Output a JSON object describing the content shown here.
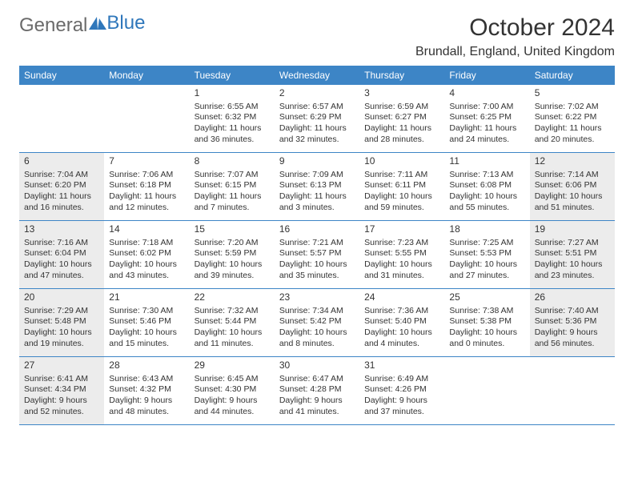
{
  "logo": {
    "text1": "General",
    "text2": "Blue"
  },
  "title": "October 2024",
  "location": "Brundall, England, United Kingdom",
  "colors": {
    "header_bg": "#3d85c6",
    "shade": "#ececec",
    "text": "#333333",
    "border": "#3d85c6"
  },
  "dayHeaders": [
    "Sunday",
    "Monday",
    "Tuesday",
    "Wednesday",
    "Thursday",
    "Friday",
    "Saturday"
  ],
  "weeks": [
    [
      {
        "day": "",
        "sunrise": "",
        "sunset": "",
        "daylight": "",
        "shade": false
      },
      {
        "day": "",
        "sunrise": "",
        "sunset": "",
        "daylight": "",
        "shade": false
      },
      {
        "day": "1",
        "sunrise": "Sunrise: 6:55 AM",
        "sunset": "Sunset: 6:32 PM",
        "daylight": "Daylight: 11 hours and 36 minutes.",
        "shade": false
      },
      {
        "day": "2",
        "sunrise": "Sunrise: 6:57 AM",
        "sunset": "Sunset: 6:29 PM",
        "daylight": "Daylight: 11 hours and 32 minutes.",
        "shade": false
      },
      {
        "day": "3",
        "sunrise": "Sunrise: 6:59 AM",
        "sunset": "Sunset: 6:27 PM",
        "daylight": "Daylight: 11 hours and 28 minutes.",
        "shade": false
      },
      {
        "day": "4",
        "sunrise": "Sunrise: 7:00 AM",
        "sunset": "Sunset: 6:25 PM",
        "daylight": "Daylight: 11 hours and 24 minutes.",
        "shade": false
      },
      {
        "day": "5",
        "sunrise": "Sunrise: 7:02 AM",
        "sunset": "Sunset: 6:22 PM",
        "daylight": "Daylight: 11 hours and 20 minutes.",
        "shade": false
      }
    ],
    [
      {
        "day": "6",
        "sunrise": "Sunrise: 7:04 AM",
        "sunset": "Sunset: 6:20 PM",
        "daylight": "Daylight: 11 hours and 16 minutes.",
        "shade": true
      },
      {
        "day": "7",
        "sunrise": "Sunrise: 7:06 AM",
        "sunset": "Sunset: 6:18 PM",
        "daylight": "Daylight: 11 hours and 12 minutes.",
        "shade": false
      },
      {
        "day": "8",
        "sunrise": "Sunrise: 7:07 AM",
        "sunset": "Sunset: 6:15 PM",
        "daylight": "Daylight: 11 hours and 7 minutes.",
        "shade": false
      },
      {
        "day": "9",
        "sunrise": "Sunrise: 7:09 AM",
        "sunset": "Sunset: 6:13 PM",
        "daylight": "Daylight: 11 hours and 3 minutes.",
        "shade": false
      },
      {
        "day": "10",
        "sunrise": "Sunrise: 7:11 AM",
        "sunset": "Sunset: 6:11 PM",
        "daylight": "Daylight: 10 hours and 59 minutes.",
        "shade": false
      },
      {
        "day": "11",
        "sunrise": "Sunrise: 7:13 AM",
        "sunset": "Sunset: 6:08 PM",
        "daylight": "Daylight: 10 hours and 55 minutes.",
        "shade": false
      },
      {
        "day": "12",
        "sunrise": "Sunrise: 7:14 AM",
        "sunset": "Sunset: 6:06 PM",
        "daylight": "Daylight: 10 hours and 51 minutes.",
        "shade": true
      }
    ],
    [
      {
        "day": "13",
        "sunrise": "Sunrise: 7:16 AM",
        "sunset": "Sunset: 6:04 PM",
        "daylight": "Daylight: 10 hours and 47 minutes.",
        "shade": true
      },
      {
        "day": "14",
        "sunrise": "Sunrise: 7:18 AM",
        "sunset": "Sunset: 6:02 PM",
        "daylight": "Daylight: 10 hours and 43 minutes.",
        "shade": false
      },
      {
        "day": "15",
        "sunrise": "Sunrise: 7:20 AM",
        "sunset": "Sunset: 5:59 PM",
        "daylight": "Daylight: 10 hours and 39 minutes.",
        "shade": false
      },
      {
        "day": "16",
        "sunrise": "Sunrise: 7:21 AM",
        "sunset": "Sunset: 5:57 PM",
        "daylight": "Daylight: 10 hours and 35 minutes.",
        "shade": false
      },
      {
        "day": "17",
        "sunrise": "Sunrise: 7:23 AM",
        "sunset": "Sunset: 5:55 PM",
        "daylight": "Daylight: 10 hours and 31 minutes.",
        "shade": false
      },
      {
        "day": "18",
        "sunrise": "Sunrise: 7:25 AM",
        "sunset": "Sunset: 5:53 PM",
        "daylight": "Daylight: 10 hours and 27 minutes.",
        "shade": false
      },
      {
        "day": "19",
        "sunrise": "Sunrise: 7:27 AM",
        "sunset": "Sunset: 5:51 PM",
        "daylight": "Daylight: 10 hours and 23 minutes.",
        "shade": true
      }
    ],
    [
      {
        "day": "20",
        "sunrise": "Sunrise: 7:29 AM",
        "sunset": "Sunset: 5:48 PM",
        "daylight": "Daylight: 10 hours and 19 minutes.",
        "shade": true
      },
      {
        "day": "21",
        "sunrise": "Sunrise: 7:30 AM",
        "sunset": "Sunset: 5:46 PM",
        "daylight": "Daylight: 10 hours and 15 minutes.",
        "shade": false
      },
      {
        "day": "22",
        "sunrise": "Sunrise: 7:32 AM",
        "sunset": "Sunset: 5:44 PM",
        "daylight": "Daylight: 10 hours and 11 minutes.",
        "shade": false
      },
      {
        "day": "23",
        "sunrise": "Sunrise: 7:34 AM",
        "sunset": "Sunset: 5:42 PM",
        "daylight": "Daylight: 10 hours and 8 minutes.",
        "shade": false
      },
      {
        "day": "24",
        "sunrise": "Sunrise: 7:36 AM",
        "sunset": "Sunset: 5:40 PM",
        "daylight": "Daylight: 10 hours and 4 minutes.",
        "shade": false
      },
      {
        "day": "25",
        "sunrise": "Sunrise: 7:38 AM",
        "sunset": "Sunset: 5:38 PM",
        "daylight": "Daylight: 10 hours and 0 minutes.",
        "shade": false
      },
      {
        "day": "26",
        "sunrise": "Sunrise: 7:40 AM",
        "sunset": "Sunset: 5:36 PM",
        "daylight": "Daylight: 9 hours and 56 minutes.",
        "shade": true
      }
    ],
    [
      {
        "day": "27",
        "sunrise": "Sunrise: 6:41 AM",
        "sunset": "Sunset: 4:34 PM",
        "daylight": "Daylight: 9 hours and 52 minutes.",
        "shade": true
      },
      {
        "day": "28",
        "sunrise": "Sunrise: 6:43 AM",
        "sunset": "Sunset: 4:32 PM",
        "daylight": "Daylight: 9 hours and 48 minutes.",
        "shade": false
      },
      {
        "day": "29",
        "sunrise": "Sunrise: 6:45 AM",
        "sunset": "Sunset: 4:30 PM",
        "daylight": "Daylight: 9 hours and 44 minutes.",
        "shade": false
      },
      {
        "day": "30",
        "sunrise": "Sunrise: 6:47 AM",
        "sunset": "Sunset: 4:28 PM",
        "daylight": "Daylight: 9 hours and 41 minutes.",
        "shade": false
      },
      {
        "day": "31",
        "sunrise": "Sunrise: 6:49 AM",
        "sunset": "Sunset: 4:26 PM",
        "daylight": "Daylight: 9 hours and 37 minutes.",
        "shade": false
      },
      {
        "day": "",
        "sunrise": "",
        "sunset": "",
        "daylight": "",
        "shade": false
      },
      {
        "day": "",
        "sunrise": "",
        "sunset": "",
        "daylight": "",
        "shade": false
      }
    ]
  ]
}
